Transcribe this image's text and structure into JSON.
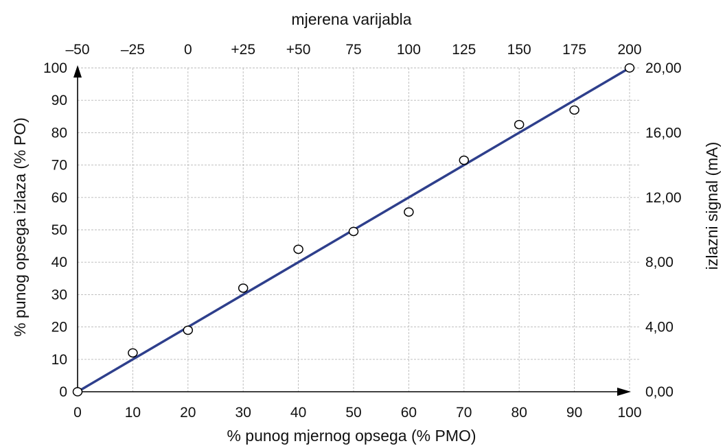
{
  "chart_data": {
    "type": "scatter",
    "title": "",
    "top_axis_title": "mjerena varijabla",
    "xlabel": "% punog mjernog opsega (% PMO)",
    "ylabel": "% punog opsega izlaza (% PO)",
    "right_ylabel": "izlazni signal (mA)",
    "xlim": [
      0,
      100
    ],
    "ylim": [
      0,
      100
    ],
    "x_ticks": [
      "0",
      "10",
      "20",
      "30",
      "40",
      "50",
      "60",
      "70",
      "80",
      "90",
      "100"
    ],
    "y_ticks": [
      "0",
      "10",
      "20",
      "30",
      "40",
      "50",
      "60",
      "70",
      "80",
      "90",
      "100"
    ],
    "top_ticks": [
      "–50",
      "–25",
      "0",
      "+25",
      "+50",
      "75",
      "100",
      "125",
      "150",
      "175",
      "200"
    ],
    "right_ticks": [
      "0,00",
      "4,00",
      "8,00",
      "12,00",
      "16,00",
      "20,00"
    ],
    "grid": true,
    "series": [
      {
        "points": [
          {
            "x": 0,
            "y": 0
          },
          {
            "x": 10,
            "y": 12
          },
          {
            "x": 20,
            "y": 19
          },
          {
            "x": 30,
            "y": 32
          },
          {
            "x": 40,
            "y": 44
          },
          {
            "x": 50,
            "y": 49.5
          },
          {
            "x": 60,
            "y": 55.5
          },
          {
            "x": 70,
            "y": 71.5
          },
          {
            "x": 80,
            "y": 82.5
          },
          {
            "x": 90,
            "y": 87
          },
          {
            "x": 100,
            "y": 100
          }
        ]
      }
    ],
    "fit_line": {
      "from": [
        0,
        0
      ],
      "to": [
        100,
        100
      ]
    },
    "colors": {
      "line": "#2e3f8c",
      "marker_fill": "#ffffff",
      "marker_stroke": "#000000",
      "grid": "#b8b8b8"
    }
  }
}
